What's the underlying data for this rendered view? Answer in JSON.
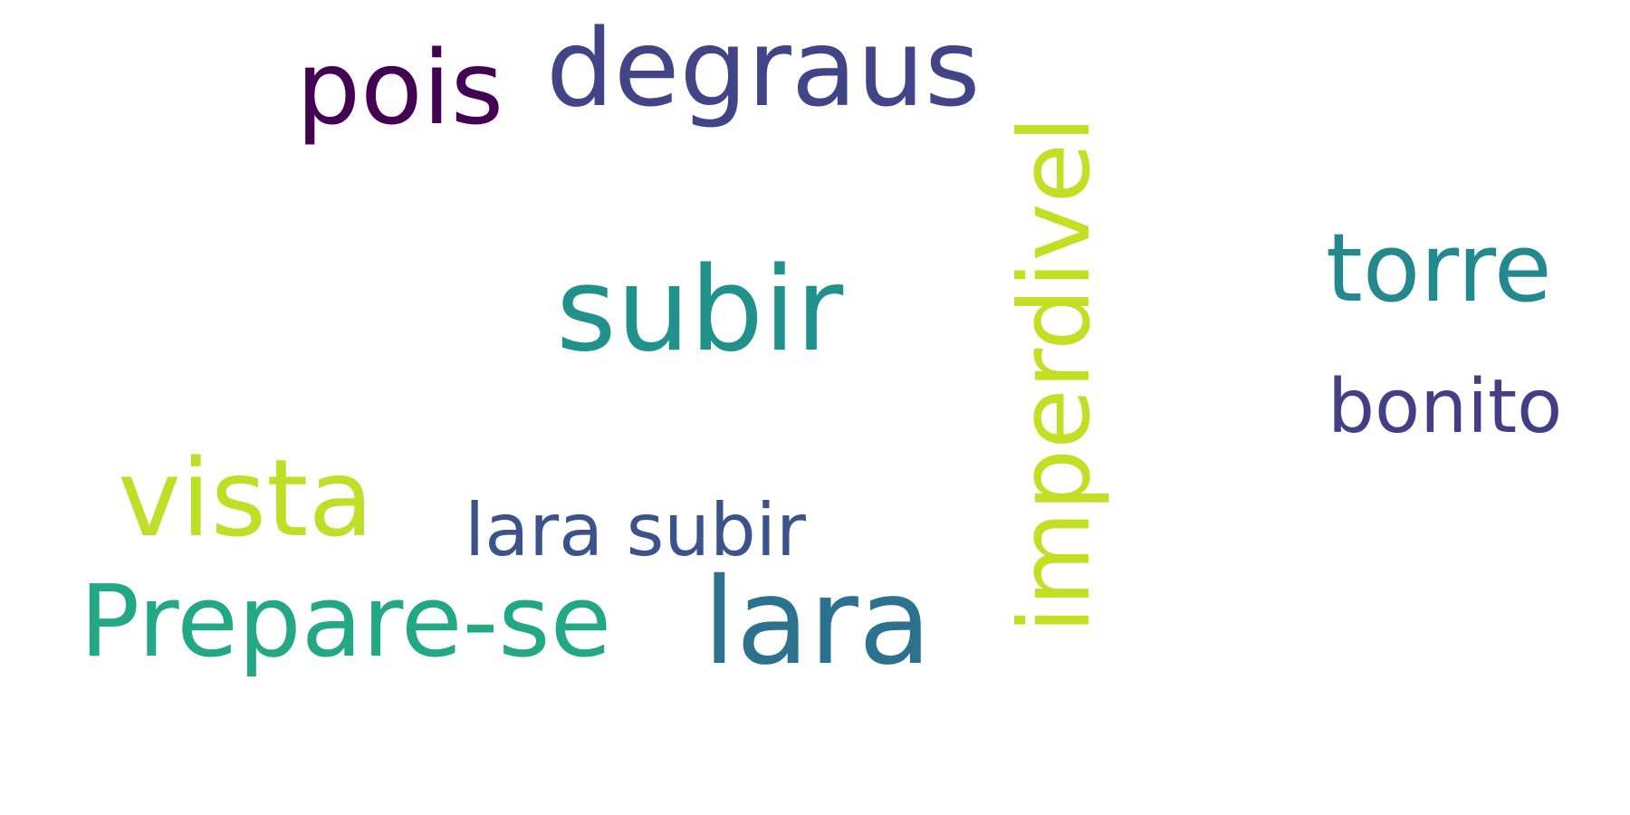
{
  "words": [
    {
      "text": "pois",
      "color": "#440154"
    },
    {
      "text": "degraus",
      "color": "#414487"
    },
    {
      "text": "subir",
      "color": "#21918c"
    },
    {
      "text": "torre",
      "color": "#23898e"
    },
    {
      "text": "bonito",
      "color": "#433e85"
    },
    {
      "text": "vista",
      "color": "#bddf26"
    },
    {
      "text": "lara subir",
      "color": "#3b528b"
    },
    {
      "text": "Prepare-se",
      "color": "#22a884"
    },
    {
      "text": "lara",
      "color": "#2c728e"
    },
    {
      "text": "imperdivel",
      "color": "#c2df23"
    }
  ]
}
